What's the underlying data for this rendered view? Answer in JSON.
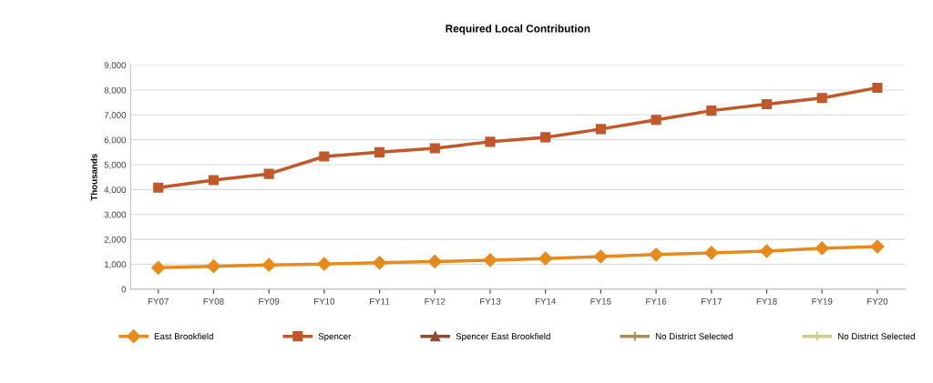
{
  "chart_data": {
    "type": "line",
    "title": "Required Local Contribution",
    "ylabel": "Thousands",
    "categories": [
      "FY07",
      "FY08",
      "FY09",
      "FY10",
      "FY11",
      "FY12",
      "FY13",
      "FY14",
      "FY15",
      "FY16",
      "FY17",
      "FY18",
      "FY19",
      "FY20"
    ],
    "series": [
      {
        "name": "East Brookfield",
        "color": "#e8891c",
        "marker": "diamond",
        "values": [
          860,
          920,
          975,
          1010,
          1060,
          1110,
          1165,
          1230,
          1310,
          1390,
          1460,
          1530,
          1640,
          1710
        ]
      },
      {
        "name": "Spencer",
        "color": "#c0582a",
        "marker": "square",
        "values": [
          4080,
          4380,
          4630,
          5330,
          5500,
          5660,
          5920,
          6100,
          6430,
          6800,
          7170,
          7430,
          7680,
          8090
        ]
      },
      {
        "name": "Spencer East Brookfield",
        "color": "#8e4c36",
        "marker": "triangle",
        "values": [
          null,
          null,
          null,
          null,
          null,
          null,
          null,
          null,
          null,
          null,
          null,
          null,
          null,
          null
        ]
      },
      {
        "name": "No District Selected",
        "color": "#a88c5c",
        "marker": "cross",
        "values": [
          null,
          null,
          null,
          null,
          null,
          null,
          null,
          null,
          null,
          null,
          null,
          null,
          null,
          null
        ]
      },
      {
        "name": "No District Selected",
        "color": "#c9cf8c",
        "marker": "cross",
        "values": [
          null,
          null,
          null,
          null,
          null,
          null,
          null,
          null,
          null,
          null,
          null,
          null,
          null,
          null
        ]
      }
    ],
    "ylim": [
      0,
      9000
    ],
    "yticks": [
      0,
      {
        "value": 1000,
        "label": "1,000"
      },
      {
        "value": 2000,
        "label": "2,000"
      },
      {
        "value": 3000,
        "label": "3,000"
      },
      {
        "value": 4000,
        "label": "4,000"
      },
      {
        "value": 5000,
        "label": "5,000"
      },
      {
        "value": 6000,
        "label": "6,000"
      },
      {
        "value": 7000,
        "label": "7,000"
      },
      {
        "value": 8000,
        "label": "8,000"
      },
      {
        "value": 9000,
        "label": "9,000"
      }
    ],
    "grid": "y",
    "legend": "bottom"
  }
}
